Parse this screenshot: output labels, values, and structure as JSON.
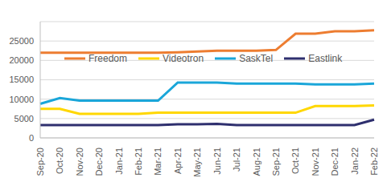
{
  "chart_data": {
    "type": "line",
    "categories": [
      "Sep-20",
      "Oct-20",
      "Nov-20",
      "Dec-20",
      "Jan-21",
      "Feb-21",
      "Mar-21",
      "Apr-21",
      "May-21",
      "Jun-21",
      "Jul-21",
      "Aug-21",
      "Sep-21",
      "Oct-21",
      "Nov-21",
      "Dec-21",
      "Jan-22",
      "Feb-22"
    ],
    "series": [
      {
        "name": "Freedom",
        "color": "#ED7D31",
        "values": [
          22000,
          22000,
          22000,
          22000,
          22000,
          22000,
          22000,
          22100,
          22300,
          22500,
          22500,
          22500,
          22700,
          26900,
          26900,
          27500,
          27500,
          27800
        ]
      },
      {
        "name": "Videotron",
        "color": "#FFD700",
        "values": [
          7500,
          7500,
          6200,
          6200,
          6200,
          6200,
          6500,
          6500,
          6500,
          6500,
          6500,
          6500,
          6500,
          6500,
          8200,
          8200,
          8200,
          8400
        ]
      },
      {
        "name": "SaskTel",
        "color": "#1AA6D9",
        "values": [
          8800,
          10300,
          9600,
          9600,
          9600,
          9600,
          9600,
          14300,
          14300,
          14300,
          14000,
          14000,
          14000,
          14000,
          13800,
          13800,
          13800,
          14000
        ]
      },
      {
        "name": "Eastlink",
        "color": "#2E2F6E",
        "values": [
          3300,
          3300,
          3300,
          3300,
          3300,
          3300,
          3300,
          3500,
          3500,
          3600,
          3300,
          3300,
          3300,
          3300,
          3300,
          3300,
          3300,
          4700
        ]
      }
    ],
    "ylim": [
      0,
      30000
    ],
    "yticks": [
      0,
      5000,
      10000,
      15000,
      20000,
      25000
    ],
    "grid": true,
    "legend": "top"
  }
}
